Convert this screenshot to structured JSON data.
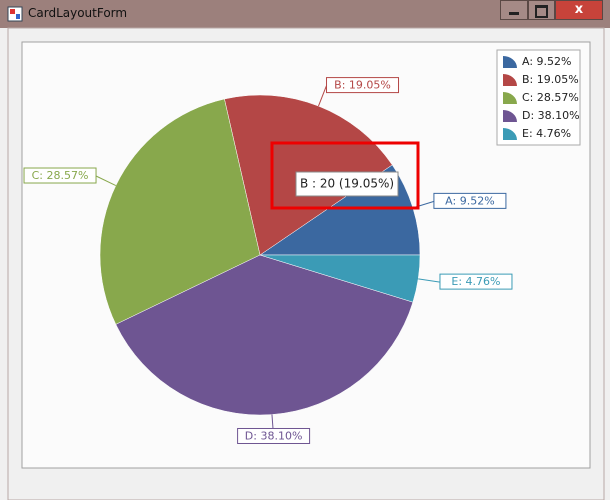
{
  "window": {
    "title": "CardLayoutForm"
  },
  "tooltip": "B : 20 (19.05%)",
  "chart_data": {
    "type": "pie",
    "categories": [
      "A",
      "B",
      "C",
      "D",
      "E"
    ],
    "values": [
      9.52,
      19.05,
      28.57,
      38.1,
      4.76
    ],
    "value_labels": [
      "A: 9.52%",
      "B: 19.05%",
      "C: 28.57%",
      "D: 38.10%",
      "E: 4.76%"
    ],
    "colors": [
      "#3b68a0",
      "#b44746",
      "#88a84c",
      "#6e5592",
      "#3b9bb6"
    ],
    "legend": "top-right"
  }
}
